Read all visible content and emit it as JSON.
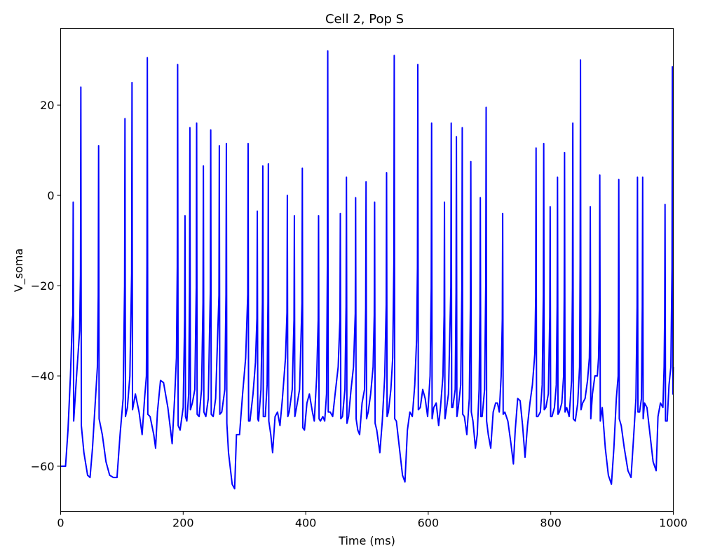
{
  "chart_data": {
    "type": "line",
    "title": "Cell 2, Pop S",
    "xlabel": "Time (ms)",
    "ylabel": "V_soma",
    "xlim": [
      0,
      1000
    ],
    "ylim": [
      -70,
      37
    ],
    "xticks": [
      0,
      200,
      400,
      600,
      800,
      1000
    ],
    "yticks": [
      -60,
      -40,
      -20,
      0,
      20
    ],
    "grid": false,
    "series": [
      {
        "color": "#0000ff",
        "spikes": [
          {
            "t": 20.5,
            "peak": -1.5,
            "trough": -50.0
          },
          {
            "t": 33.0,
            "peak": 24.0,
            "trough": -51.0
          },
          {
            "t": 62.0,
            "peak": 11.0,
            "trough": -49.5
          },
          {
            "t": 105.0,
            "peak": 17.0,
            "trough": -49.0
          },
          {
            "t": 116.5,
            "peak": 25.0,
            "trough": -47.5
          },
          {
            "t": 141.5,
            "peak": 30.5,
            "trough": -48.5
          },
          {
            "t": 191.0,
            "peak": 29.0,
            "trough": -51.0
          },
          {
            "t": 203.0,
            "peak": -4.5,
            "trough": -49.0
          },
          {
            "t": 211.0,
            "peak": 15.0,
            "trough": -47.5
          },
          {
            "t": 222.0,
            "peak": 16.0,
            "trough": -48.5
          },
          {
            "t": 233.0,
            "peak": 6.5,
            "trough": -48.0
          },
          {
            "t": 245.0,
            "peak": 14.5,
            "trough": -48.5
          },
          {
            "t": 259.0,
            "peak": 11.0,
            "trough": -48.5
          },
          {
            "t": 270.5,
            "peak": 11.5,
            "trough": -50.5
          },
          {
            "t": 306.0,
            "peak": 11.5,
            "trough": -50.0
          },
          {
            "t": 321.0,
            "peak": -3.5,
            "trough": -49.5
          },
          {
            "t": 330.0,
            "peak": 6.5,
            "trough": -49.0
          },
          {
            "t": 339.0,
            "peak": 7.0,
            "trough": -50.0
          },
          {
            "t": 370.0,
            "peak": 0.0,
            "trough": -49.0
          },
          {
            "t": 381.5,
            "peak": -4.5,
            "trough": -49.0
          },
          {
            "t": 394.5,
            "peak": 6.0,
            "trough": -51.5
          },
          {
            "t": 421.0,
            "peak": -4.5,
            "trough": -49.5
          },
          {
            "t": 436.0,
            "peak": 32.0,
            "trough": -48.0
          },
          {
            "t": 456.5,
            "peak": -4.0,
            "trough": -49.5
          },
          {
            "t": 466.5,
            "peak": 4.0,
            "trough": -50.5
          },
          {
            "t": 481.5,
            "peak": -0.5,
            "trough": -49.5
          },
          {
            "t": 498.5,
            "peak": 3.0,
            "trough": -49.5
          },
          {
            "t": 512.5,
            "peak": -1.5,
            "trough": -50.5
          },
          {
            "t": 532.0,
            "peak": 5.0,
            "trough": -49.0
          },
          {
            "t": 544.5,
            "peak": 31.0,
            "trough": -49.5
          },
          {
            "t": 583.0,
            "peak": 29.0,
            "trough": -47.5
          },
          {
            "t": 605.5,
            "peak": 16.0,
            "trough": -49.5
          },
          {
            "t": 626.5,
            "peak": -1.5,
            "trough": -49.5
          },
          {
            "t": 637.5,
            "peak": 16.0,
            "trough": -47.0
          },
          {
            "t": 646.0,
            "peak": 13.0,
            "trough": -49.0
          },
          {
            "t": 655.5,
            "peak": 15.0,
            "trough": -48.5
          },
          {
            "t": 669.5,
            "peak": 7.5,
            "trough": -48.0
          },
          {
            "t": 685.0,
            "peak": -0.5,
            "trough": -49.0
          },
          {
            "t": 694.5,
            "peak": 19.5,
            "trough": -50.0
          },
          {
            "t": 721.5,
            "peak": -4.0,
            "trough": -48.5
          },
          {
            "t": 776.0,
            "peak": 10.5,
            "trough": -49.0
          },
          {
            "t": 788.5,
            "peak": 11.5,
            "trough": -47.5
          },
          {
            "t": 799.0,
            "peak": -2.5,
            "trough": -49.0
          },
          {
            "t": 811.0,
            "peak": 4.0,
            "trough": -48.5
          },
          {
            "t": 822.5,
            "peak": 9.5,
            "trough": -48.0
          },
          {
            "t": 836.0,
            "peak": 16.0,
            "trough": -49.5
          },
          {
            "t": 848.5,
            "peak": 30.0,
            "trough": -47.5
          },
          {
            "t": 864.5,
            "peak": -2.5,
            "trough": -49.5
          },
          {
            "t": 880.0,
            "peak": 4.5,
            "trough": -50.0
          },
          {
            "t": 911.0,
            "peak": 3.5,
            "trough": -49.5
          },
          {
            "t": 941.5,
            "peak": 4.0,
            "trough": -48.0
          },
          {
            "t": 950.0,
            "peak": 4.0,
            "trough": -49.5
          },
          {
            "t": 986.5,
            "peak": -2.0,
            "trough": -50.0
          },
          {
            "t": 998.5,
            "peak": 28.5,
            "trough": -44.0
          }
        ],
        "subthreshold": [
          [
            0,
            -60
          ],
          [
            8,
            -60
          ],
          [
            12,
            -52
          ],
          [
            16,
            -40
          ],
          [
            19,
            -28
          ],
          [
            26,
            -40
          ],
          [
            31,
            -30
          ],
          [
            38,
            -57
          ],
          [
            44,
            -62
          ],
          [
            48,
            -62.5
          ],
          [
            52,
            -56
          ],
          [
            56,
            -47
          ],
          [
            60,
            -38
          ],
          [
            68,
            -53
          ],
          [
            74,
            -59
          ],
          [
            80,
            -62
          ],
          [
            86,
            -62.5
          ],
          [
            92,
            -62.5
          ],
          [
            97,
            -53
          ],
          [
            102,
            -45
          ],
          [
            109,
            -47
          ],
          [
            113,
            -40
          ],
          [
            122,
            -44
          ],
          [
            128,
            -48
          ],
          [
            133,
            -53
          ],
          [
            137,
            -45
          ],
          [
            140,
            -40
          ],
          [
            146,
            -49
          ],
          [
            152,
            -53
          ],
          [
            155,
            -56
          ],
          [
            158,
            -48
          ],
          [
            163,
            -41
          ],
          [
            168,
            -41.5
          ],
          [
            175,
            -47
          ],
          [
            182,
            -55
          ],
          [
            186,
            -45
          ],
          [
            189,
            -36
          ],
          [
            195,
            -52
          ],
          [
            200,
            -47
          ],
          [
            206,
            -50
          ],
          [
            209,
            -44
          ],
          [
            215,
            -46
          ],
          [
            219,
            -43
          ],
          [
            226,
            -49
          ],
          [
            230,
            -43
          ],
          [
            237,
            -49
          ],
          [
            241,
            -45
          ],
          [
            249,
            -49
          ],
          [
            253,
            -45
          ],
          [
            263,
            -48
          ],
          [
            268,
            -43
          ],
          [
            274,
            -57
          ],
          [
            280,
            -64
          ],
          [
            284,
            -65
          ],
          [
            287,
            -53
          ],
          [
            292,
            -53
          ],
          [
            297,
            -44
          ],
          [
            302,
            -36
          ],
          [
            309,
            -50
          ],
          [
            314,
            -44
          ],
          [
            318,
            -37
          ],
          [
            323,
            -50
          ],
          [
            327,
            -43
          ],
          [
            334,
            -49
          ],
          [
            337,
            -42
          ],
          [
            343,
            -53
          ],
          [
            346,
            -57
          ],
          [
            350,
            -49
          ],
          [
            354,
            -48
          ],
          [
            358,
            -51
          ],
          [
            362,
            -45
          ],
          [
            367,
            -36
          ],
          [
            373,
            -48
          ],
          [
            378,
            -43
          ],
          [
            385,
            -47
          ],
          [
            390,
            -43
          ],
          [
            398,
            -52
          ],
          [
            402,
            -46
          ],
          [
            406,
            -44
          ],
          [
            411,
            -48
          ],
          [
            414,
            -50
          ],
          [
            418,
            -40
          ],
          [
            424,
            -50
          ],
          [
            428,
            -49
          ],
          [
            431,
            -50
          ],
          [
            434,
            -44
          ],
          [
            440,
            -48
          ],
          [
            444,
            -49
          ],
          [
            448,
            -44
          ],
          [
            453,
            -38
          ],
          [
            460,
            -49
          ],
          [
            464,
            -43
          ],
          [
            470,
            -49
          ],
          [
            474,
            -43
          ],
          [
            478,
            -38
          ],
          [
            485,
            -52
          ],
          [
            488,
            -53
          ],
          [
            492,
            -46
          ],
          [
            496,
            -43
          ],
          [
            502,
            -48
          ],
          [
            506,
            -44
          ],
          [
            510,
            -38
          ],
          [
            516,
            -52
          ],
          [
            521,
            -57
          ],
          [
            525,
            -50
          ],
          [
            529,
            -40
          ],
          [
            535,
            -48
          ],
          [
            539,
            -43
          ],
          [
            542,
            -36
          ],
          [
            548,
            -50
          ],
          [
            553,
            -56
          ],
          [
            558,
            -62
          ],
          [
            562,
            -63.5
          ],
          [
            566,
            -52
          ],
          [
            570,
            -48
          ],
          [
            574,
            -49
          ],
          [
            578,
            -42
          ],
          [
            581,
            -32
          ],
          [
            587,
            -47
          ],
          [
            591,
            -43
          ],
          [
            595,
            -45
          ],
          [
            599,
            -49
          ],
          [
            603,
            -40
          ],
          [
            609,
            -47
          ],
          [
            613,
            -46
          ],
          [
            617,
            -51
          ],
          [
            620,
            -47
          ],
          [
            624,
            -40
          ],
          [
            629,
            -48
          ],
          [
            633,
            -44
          ],
          [
            640,
            -47
          ],
          [
            644,
            -43
          ],
          [
            649,
            -47
          ],
          [
            653,
            -42
          ],
          [
            659,
            -49
          ],
          [
            663,
            -53
          ],
          [
            667,
            -45
          ],
          [
            673,
            -50
          ],
          [
            677,
            -56
          ],
          [
            680,
            -53
          ],
          [
            683,
            -43
          ],
          [
            688,
            -49
          ],
          [
            692,
            -43
          ],
          [
            698,
            -53
          ],
          [
            702,
            -56
          ],
          [
            706,
            -48
          ],
          [
            710,
            -46
          ],
          [
            713,
            -46
          ],
          [
            716,
            -48
          ],
          [
            719,
            -40
          ],
          [
            725,
            -48
          ],
          [
            730,
            -50
          ],
          [
            735,
            -55
          ],
          [
            739,
            -59.5
          ],
          [
            742,
            -52
          ],
          [
            746,
            -45
          ],
          [
            750,
            -45.5
          ],
          [
            754,
            -51
          ],
          [
            758,
            -58
          ],
          [
            762,
            -51
          ],
          [
            766,
            -46
          ],
          [
            770,
            -42
          ],
          [
            774,
            -35
          ],
          [
            779,
            -49
          ],
          [
            783,
            -48
          ],
          [
            786,
            -42
          ],
          [
            792,
            -47
          ],
          [
            796,
            -44
          ],
          [
            802,
            -49
          ],
          [
            806,
            -47
          ],
          [
            809,
            -42
          ],
          [
            814,
            -48
          ],
          [
            818,
            -46
          ],
          [
            821,
            -40
          ],
          [
            826,
            -47
          ],
          [
            830,
            -49
          ],
          [
            834,
            -41
          ],
          [
            840,
            -50
          ],
          [
            844,
            -46
          ],
          [
            847,
            -38
          ],
          [
            852,
            -46
          ],
          [
            856,
            -45
          ],
          [
            860,
            -41
          ],
          [
            863,
            -36
          ],
          [
            868,
            -44
          ],
          [
            872,
            -40
          ],
          [
            876,
            -40
          ],
          [
            878,
            -36
          ],
          [
            884,
            -47
          ],
          [
            889,
            -56
          ],
          [
            894,
            -62
          ],
          [
            899,
            -64
          ],
          [
            903,
            -56
          ],
          [
            907,
            -45
          ],
          [
            910,
            -40
          ],
          [
            915,
            -51
          ],
          [
            920,
            -56
          ],
          [
            926,
            -61
          ],
          [
            931,
            -62.5
          ],
          [
            935,
            -54
          ],
          [
            939,
            -45
          ],
          [
            945,
            -48
          ],
          [
            948,
            -45
          ],
          [
            953,
            -46
          ],
          [
            957,
            -47
          ],
          [
            962,
            -53
          ],
          [
            967,
            -59
          ],
          [
            972,
            -61
          ],
          [
            975,
            -49
          ],
          [
            979,
            -46
          ],
          [
            983,
            -47
          ],
          [
            985,
            -38
          ],
          [
            990,
            -50
          ],
          [
            993,
            -42
          ],
          [
            996,
            -38
          ],
          [
            1000,
            -38
          ]
        ]
      }
    ]
  }
}
